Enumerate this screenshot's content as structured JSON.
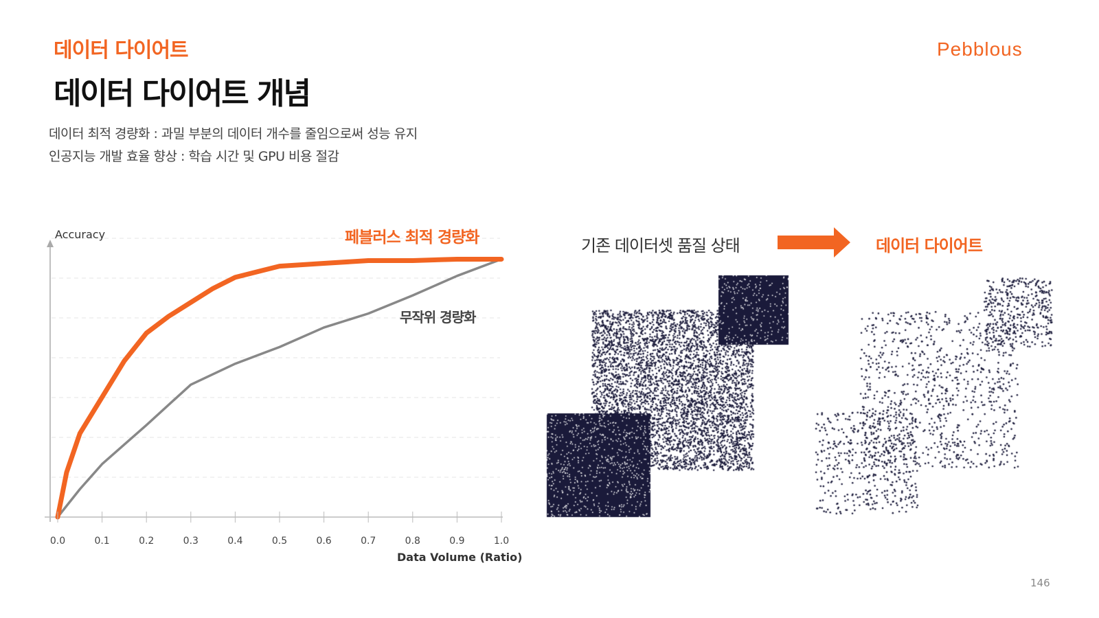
{
  "header": {
    "section": "데이터 다이어트",
    "title": "데이터 다이어트 개념",
    "logo": "Pebblous"
  },
  "bullets": [
    "데이터 최적 경량화 : 과밀 부분의 데이터 개수를 줄임으로써 성능 유지",
    "인공지능 개발 효율 향상 : 학습 시간 및 GPU 비용 절감"
  ],
  "diagram": {
    "before_label": "기존 데이터셋 품질 상태",
    "after_label": "데이터 다이어트",
    "arrow_icon": "arrow-right-icon",
    "dot_color": "#1a1a3a"
  },
  "page_number": "146",
  "colors": {
    "accent": "#f26522",
    "gray_series": "#888888",
    "text": "#111111"
  },
  "chart_data": {
    "type": "line",
    "xlabel": "Data Volume (Ratio)",
    "ylabel": "Accuracy",
    "xlim": [
      0,
      1
    ],
    "ylim": [
      0,
      1
    ],
    "grid": "horizontal dashed",
    "x_ticks": [
      "0.0",
      "0.1",
      "0.2",
      "0.3",
      "0.4",
      "0.5",
      "0.6",
      "0.7",
      "0.8",
      "0.9",
      "1.0"
    ],
    "series": [
      {
        "name": "페블러스 최적 경량화",
        "color": "#f26522",
        "x": [
          0,
          0.02,
          0.05,
          0.1,
          0.15,
          0.2,
          0.25,
          0.3,
          0.35,
          0.4,
          0.5,
          0.6,
          0.7,
          0.8,
          0.9,
          1.0
        ],
        "y": [
          0,
          0.16,
          0.3,
          0.43,
          0.56,
          0.66,
          0.72,
          0.77,
          0.82,
          0.86,
          0.9,
          0.91,
          0.92,
          0.92,
          0.925,
          0.925
        ]
      },
      {
        "name": "무작위 경량화",
        "color": "#888888",
        "x": [
          0,
          0.05,
          0.1,
          0.2,
          0.3,
          0.4,
          0.5,
          0.6,
          0.7,
          0.8,
          0.9,
          1.0
        ],
        "y": [
          0,
          0.1,
          0.19,
          0.33,
          0.475,
          0.55,
          0.61,
          0.68,
          0.73,
          0.795,
          0.865,
          0.925
        ]
      }
    ]
  }
}
